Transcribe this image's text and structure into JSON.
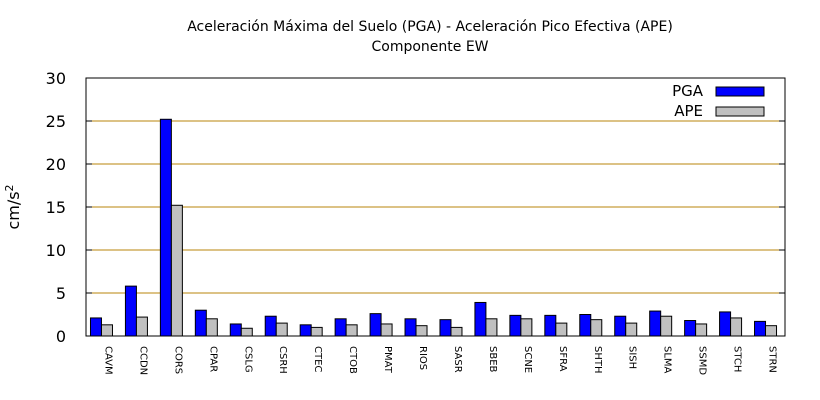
{
  "chart_data": {
    "type": "bar",
    "title": "Aceleración Máxima del Suelo (PGA) -  Aceleración Pico Efectiva (APE)",
    "subtitle": "Componente EW",
    "xlabel": "",
    "ylabel": "cm/s",
    "ylabel_sup": "2",
    "ylim": [
      0,
      30
    ],
    "yticks": [
      0,
      5,
      10,
      15,
      20,
      25,
      30
    ],
    "grid": true,
    "legend_position": "top-right",
    "categories": [
      "CAVM",
      "CCDN",
      "CORS",
      "CPAR",
      "CSLG",
      "CSRH",
      "CTEC",
      "CTOB",
      "PMAT",
      "RIOS",
      "SASR",
      "SBEB",
      "SCNE",
      "SFRA",
      "SHTH",
      "SISH",
      "SLMA",
      "SSMD",
      "STCH",
      "STRN"
    ],
    "series": [
      {
        "name": "PGA",
        "color": "#0000ff",
        "values": [
          2.1,
          5.8,
          25.2,
          3.0,
          1.4,
          2.3,
          1.3,
          2.0,
          2.6,
          2.0,
          1.9,
          3.9,
          2.4,
          2.4,
          2.5,
          2.3,
          2.9,
          1.8,
          2.8,
          1.7
        ]
      },
      {
        "name": "APE",
        "color": "#c0c0c0",
        "values": [
          1.3,
          2.2,
          15.2,
          2.0,
          0.9,
          1.5,
          1.0,
          1.3,
          1.4,
          1.2,
          1.0,
          2.0,
          2.0,
          1.5,
          1.9,
          1.5,
          2.3,
          1.4,
          2.1,
          1.2
        ]
      }
    ]
  }
}
